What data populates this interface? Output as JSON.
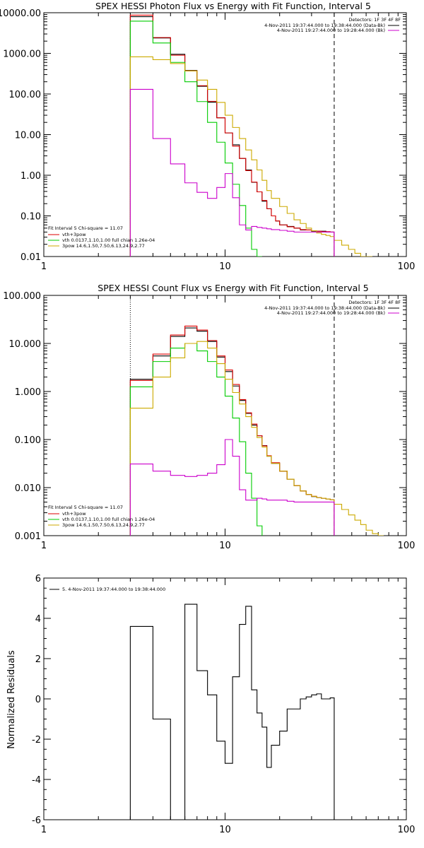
{
  "chart_data": [
    {
      "type": "line",
      "title": "SPEX HESSI Photon Flux vs Energy with Fit Function, Interval 5",
      "x_scale": "log",
      "y_scale": "log",
      "xlim": [
        1,
        100
      ],
      "ylim": [
        0.01,
        10000
      ],
      "x_ticks": [
        {
          "v": 1,
          "label": "1"
        },
        {
          "v": 10,
          "label": "10"
        },
        {
          "v": 100,
          "label": "100"
        }
      ],
      "y_ticks": [
        {
          "v": 10000,
          "label": "10000.00"
        },
        {
          "v": 1000,
          "label": "1000.00"
        },
        {
          "v": 100,
          "label": "100.00"
        },
        {
          "v": 10,
          "label": "10.00"
        },
        {
          "v": 1,
          "label": "1.00"
        },
        {
          "v": 0.1,
          "label": "0.10"
        },
        {
          "v": 0.01,
          "label": "0.01"
        }
      ],
      "ref_lines": [
        {
          "x": 3,
          "style": "dotted",
          "color": "#000000"
        },
        {
          "x": 40,
          "style": "dashed",
          "color": "#000000"
        }
      ],
      "legend_top_right": {
        "header": "Detectors: 1F 3F 4F 8F",
        "lines": [
          {
            "text": "4-Nov-2011 19:37:44.000 to 19:38:44.000 (Data-Bk)",
            "color": "#000000"
          },
          {
            "text": "4-Nov-2011 19:27:44.000 to 19:28:44.000 (Bk)",
            "color": "#cc00cc"
          }
        ]
      },
      "legend_bottom_left": {
        "header": "Fit Interval 5   Chi-square = 11.07",
        "lines": [
          {
            "text": "vth+3pow",
            "color": "#dd0000"
          },
          {
            "text": "vth 0.0137,1.10,1.00  full chian 1.26e-04",
            "color": "#00cc00"
          },
          {
            "text": "3pow 14.6,1.50,7.50,6.13,24.9,2.77",
            "color": "#ccaa00"
          }
        ]
      },
      "x_edges": [
        3,
        3.5,
        4,
        4.5,
        5,
        5.5,
        6,
        6.5,
        7,
        7.5,
        8,
        8.5,
        9,
        9.5,
        10,
        10.5,
        11,
        11.5,
        12,
        12.5,
        13,
        13.5,
        14,
        14.5,
        15,
        16,
        17,
        18,
        19,
        20,
        22,
        24,
        26,
        28,
        30,
        32,
        34,
        36,
        38,
        40
      ],
      "series": [
        {
          "name": "Data-Bk",
          "color": "#000000",
          "edges_ref": "x_edges",
          "values": [
            8000,
            8000,
            2400,
            2400,
            950,
            950,
            380,
            380,
            155,
            155,
            63,
            63,
            26,
            26,
            11,
            11,
            5.6,
            5.6,
            2.6,
            2.6,
            1.35,
            1.35,
            0.67,
            0.67,
            0.39,
            0.23,
            0.15,
            0.1,
            0.075,
            0.06,
            0.055,
            0.05,
            0.045,
            0.045,
            0.042,
            0.042,
            0.042,
            0.04,
            0.04
          ]
        },
        {
          "name": "vth+3pow",
          "color": "#dd0000",
          "edges": [
            3,
            3.5,
            4,
            4.5,
            5,
            5.5,
            6,
            6.5,
            7,
            7.5,
            8,
            8.5,
            9,
            9.5,
            10,
            10.5,
            11,
            11.5,
            12,
            12.5,
            13,
            13.5,
            14,
            14.5,
            15,
            16,
            17,
            18,
            19,
            20,
            22,
            24,
            26,
            28,
            30,
            32,
            34,
            36,
            38,
            40
          ],
          "values": [
            8700,
            8700,
            2450,
            2450,
            900,
            900,
            370,
            370,
            160,
            160,
            66,
            66,
            26,
            26,
            11,
            11,
            5.2,
            5.2,
            2.6,
            2.6,
            1.3,
            1.3,
            0.68,
            0.68,
            0.39,
            0.24,
            0.15,
            0.1,
            0.075,
            0.06,
            0.054,
            0.05,
            0.046,
            0.045,
            0.043,
            0.042,
            0.041,
            0.041,
            0.04
          ]
        },
        {
          "name": "vth",
          "color": "#00cc00",
          "edges": [
            3,
            4,
            5,
            6,
            7,
            8,
            9,
            10,
            11,
            12,
            13,
            14,
            15,
            16
          ],
          "values": [
            6200,
            1800,
            600,
            200,
            65,
            20,
            6.5,
            2.0,
            0.6,
            0.18,
            0.05,
            0.015,
            0.006
          ]
        },
        {
          "name": "3pow",
          "color": "#ccaa00",
          "edges": [
            3,
            4,
            5,
            6,
            7,
            8,
            9,
            10,
            11,
            12,
            13,
            14,
            15,
            16,
            17,
            18,
            20,
            22,
            24,
            26,
            28,
            30,
            32,
            34,
            36,
            38,
            40,
            44,
            48,
            52,
            56,
            60,
            65
          ],
          "values": [
            820,
            700,
            560,
            370,
            220,
            130,
            62,
            30,
            15,
            8,
            4.2,
            2.4,
            1.35,
            0.75,
            0.42,
            0.27,
            0.17,
            0.115,
            0.08,
            0.065,
            0.05,
            0.043,
            0.038,
            0.035,
            0.033,
            0.031,
            0.025,
            0.019,
            0.015,
            0.012,
            0.01,
            0.008
          ]
        },
        {
          "name": "Bk",
          "color": "#cc00cc",
          "edges": [
            3,
            4,
            5,
            6,
            7,
            8,
            9,
            10,
            11,
            12,
            13,
            14,
            15,
            16,
            17,
            18,
            20,
            22,
            24,
            26,
            28,
            30,
            32,
            34,
            36,
            38,
            40
          ],
          "values": [
            130,
            8,
            1.9,
            0.65,
            0.38,
            0.27,
            0.5,
            1.1,
            0.28,
            0.06,
            0.045,
            0.055,
            0.052,
            0.05,
            0.048,
            0.046,
            0.044,
            0.042,
            0.04,
            0.04,
            0.04,
            0.04,
            0.04,
            0.04,
            0.04,
            0.04
          ]
        }
      ]
    },
    {
      "type": "line",
      "title": "SPEX HESSI Count Flux vs Energy with Fit Function, Interval 5",
      "x_scale": "log",
      "y_scale": "log",
      "xlim": [
        1,
        100
      ],
      "ylim": [
        0.001,
        100
      ],
      "x_ticks": [
        {
          "v": 1,
          "label": "1"
        },
        {
          "v": 10,
          "label": "10"
        },
        {
          "v": 100,
          "label": "100"
        }
      ],
      "y_ticks": [
        {
          "v": 100,
          "label": "100.000"
        },
        {
          "v": 10,
          "label": "10.000"
        },
        {
          "v": 1,
          "label": "1.000"
        },
        {
          "v": 0.1,
          "label": "0.100"
        },
        {
          "v": 0.01,
          "label": "0.010"
        },
        {
          "v": 0.001,
          "label": "0.001"
        }
      ],
      "ref_lines": [
        {
          "x": 3,
          "style": "dotted",
          "color": "#000000"
        },
        {
          "x": 40,
          "style": "dashed",
          "color": "#000000"
        }
      ],
      "legend_top_right": {
        "header": "Detectors: 1F 3F 4F 8F",
        "lines": [
          {
            "text": "4-Nov-2011 19:37:44.000 to 19:38:44.000 (Data-Bk)",
            "color": "#000000"
          },
          {
            "text": "4-Nov-2011 19:27:44.000 to 19:28:44.000 (Bk)",
            "color": "#cc00cc"
          }
        ]
      },
      "legend_bottom_left": {
        "header": "Fit Interval 5   Chi-square = 11.07",
        "lines": [
          {
            "text": "vth+3pow",
            "color": "#dd0000"
          },
          {
            "text": "vth 0.0137,1.10,1.00  full chian 1.26e-04",
            "color": "#00cc00"
          },
          {
            "text": "3pow 14.6,1.50,7.50,6.13,24.9,2.77",
            "color": "#ccaa00"
          }
        ]
      },
      "series": [
        {
          "name": "Data-Bk",
          "color": "#000000",
          "edges": [
            3,
            4,
            5,
            6,
            7,
            8,
            9,
            10,
            11,
            12,
            13,
            14,
            15,
            16,
            17,
            18,
            20,
            22,
            24,
            26,
            28,
            30,
            32,
            34,
            36,
            38,
            40
          ],
          "values": [
            1.8,
            5.5,
            14,
            21,
            18,
            11,
            5.2,
            2.6,
            1.3,
            0.65,
            0.35,
            0.2,
            0.12,
            0.075,
            0.045,
            0.032,
            0.022,
            0.015,
            0.011,
            0.0085,
            0.0072,
            0.0065,
            0.0062,
            0.006,
            0.0058,
            0.0056
          ]
        },
        {
          "name": "vth+3pow",
          "color": "#dd0000",
          "edges": [
            3,
            4,
            5,
            6,
            7,
            8,
            9,
            10,
            11,
            12,
            13,
            14,
            15,
            16,
            17,
            18,
            20,
            22,
            24,
            26,
            28,
            30,
            32,
            34,
            36,
            38,
            40
          ],
          "values": [
            1.7,
            6.0,
            15,
            23,
            19,
            11.5,
            5.5,
            2.8,
            1.4,
            0.68,
            0.36,
            0.21,
            0.12,
            0.074,
            0.046,
            0.033,
            0.022,
            0.015,
            0.011,
            0.0085,
            0.0072,
            0.0066,
            0.0062,
            0.006,
            0.0058,
            0.0056
          ]
        },
        {
          "name": "vth",
          "color": "#00cc00",
          "edges": [
            3,
            4,
            5,
            6,
            7,
            8,
            9,
            10,
            11,
            12,
            13,
            14,
            15,
            16
          ],
          "values": [
            1.25,
            4.2,
            8,
            10,
            7,
            4.2,
            2.0,
            0.8,
            0.28,
            0.09,
            0.02,
            0.006,
            0.0016
          ]
        },
        {
          "name": "3pow",
          "color": "#ccaa00",
          "edges": [
            3,
            4,
            5,
            6,
            7,
            8,
            9,
            10,
            11,
            12,
            13,
            14,
            15,
            16,
            17,
            18,
            20,
            22,
            24,
            26,
            28,
            30,
            32,
            34,
            36,
            38,
            40,
            44,
            48,
            52,
            56,
            60,
            65,
            70,
            75
          ],
          "values": [
            0.45,
            2.0,
            5.0,
            10,
            11,
            8.0,
            3.8,
            1.8,
            0.95,
            0.55,
            0.3,
            0.18,
            0.11,
            0.07,
            0.045,
            0.032,
            0.022,
            0.015,
            0.011,
            0.0085,
            0.0072,
            0.0066,
            0.0062,
            0.006,
            0.0058,
            0.0056,
            0.0045,
            0.0035,
            0.0027,
            0.0021,
            0.0017,
            0.0013,
            0.0011,
            0.001
          ]
        },
        {
          "name": "Bk",
          "color": "#cc00cc",
          "edges": [
            3,
            4,
            5,
            6,
            7,
            8,
            9,
            10,
            11,
            12,
            13,
            14,
            15,
            16,
            17,
            18,
            20,
            22,
            24,
            26,
            28,
            30,
            32,
            34,
            36,
            38,
            40
          ],
          "values": [
            0.031,
            0.022,
            0.018,
            0.017,
            0.018,
            0.02,
            0.03,
            0.1,
            0.045,
            0.009,
            0.0055,
            0.0055,
            0.006,
            0.0058,
            0.0055,
            0.0055,
            0.0055,
            0.0052,
            0.005,
            0.005,
            0.005,
            0.005,
            0.005,
            0.005,
            0.005,
            0.005
          ]
        }
      ]
    },
    {
      "type": "line",
      "title": "",
      "ylabel": "Normalized Residuals",
      "x_scale": "log",
      "y_scale": "linear",
      "xlim": [
        1,
        100
      ],
      "ylim": [
        -6,
        6
      ],
      "x_ticks": [
        {
          "v": 1,
          "label": "1"
        },
        {
          "v": 10,
          "label": "10"
        },
        {
          "v": 100,
          "label": "100"
        }
      ],
      "y_ticks": [
        {
          "v": 6,
          "label": "6"
        },
        {
          "v": 4,
          "label": "4"
        },
        {
          "v": 2,
          "label": "2"
        },
        {
          "v": 0,
          "label": "0"
        },
        {
          "v": -2,
          "label": "-2"
        },
        {
          "v": -4,
          "label": "-4"
        },
        {
          "v": -6,
          "label": "-6"
        }
      ],
      "legend_top_left": {
        "lines": [
          {
            "text": "5.  4-Nov-2011 19:37:44.000 to 19:38:44.000",
            "color": "#000000"
          }
        ]
      },
      "series": [
        {
          "name": "5.",
          "color": "#000000",
          "edges": [
            3,
            4,
            5,
            6,
            7,
            8,
            9,
            10,
            11,
            12,
            13,
            14,
            15,
            16,
            17,
            18,
            20,
            22,
            24,
            26,
            28,
            30,
            32,
            34,
            36,
            38,
            40
          ],
          "values": [
            3.6,
            -1.0,
            -6.1,
            4.7,
            1.4,
            0.2,
            -2.1,
            -3.2,
            1.1,
            3.7,
            4.6,
            0.45,
            -0.7,
            -1.4,
            -3.4,
            -2.3,
            -1.6,
            -0.5,
            -0.5,
            0.0,
            0.1,
            0.2,
            0.25,
            0.0,
            0.0,
            0.05
          ]
        }
      ]
    }
  ]
}
